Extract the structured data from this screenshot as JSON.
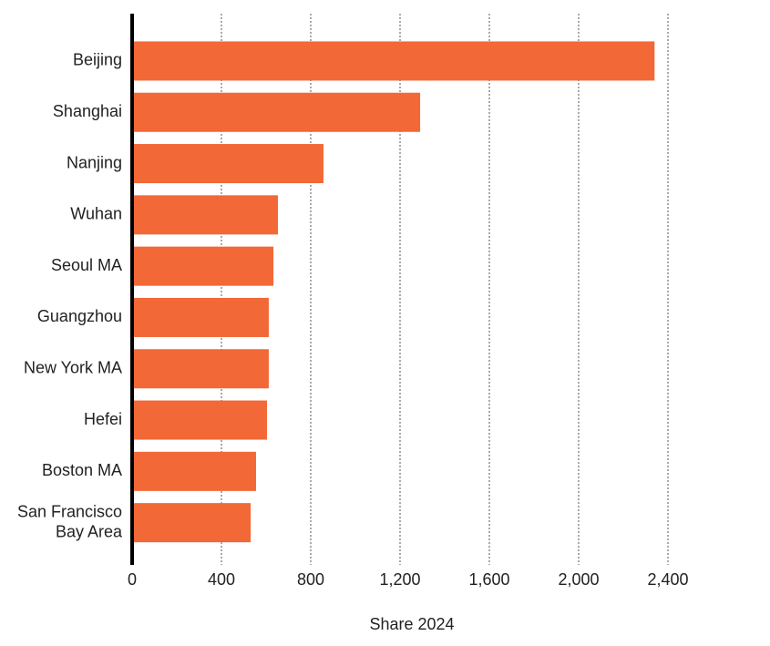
{
  "chart_data": {
    "type": "bar",
    "orientation": "horizontal",
    "x_label": "Share 2024",
    "categories": [
      "Beijing",
      "Shanghai",
      "Nanjing",
      "Wuhan",
      "Seoul MA",
      "Guangzhou",
      "New York MA",
      "Hefei",
      "Boston MA",
      "San Francisco\nBay Area"
    ],
    "values": [
      2340,
      1290,
      857,
      653,
      633,
      612,
      612,
      604,
      555,
      531
    ],
    "color": "#f26836",
    "xlim": [
      0,
      2400
    ],
    "xticks": [
      0,
      400,
      800,
      {
        "value": 1200,
        "label": "1,200"
      },
      {
        "value": 1600,
        "label": "1,600"
      },
      {
        "value": 2000,
        "label": "2,000"
      },
      {
        "value": 2400,
        "label": "2,400"
      }
    ],
    "grid": true
  }
}
